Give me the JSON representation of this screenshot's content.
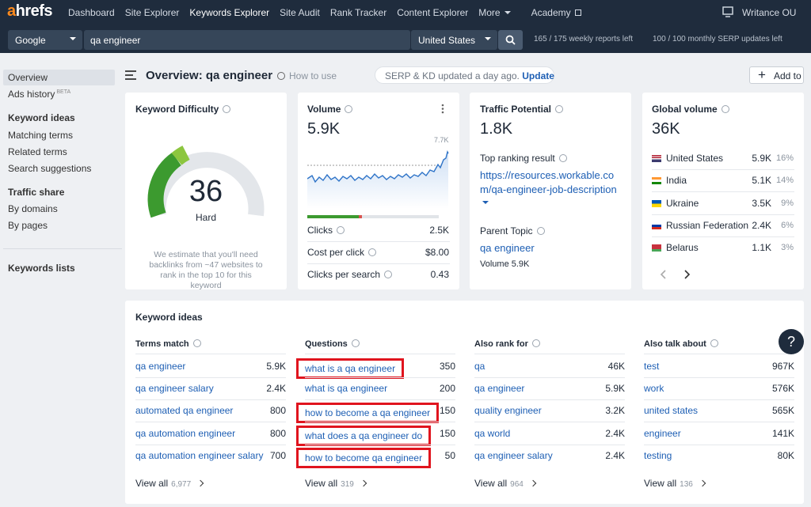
{
  "nav": {
    "logo": "ahrefs",
    "items": [
      "Dashboard",
      "Site Explorer",
      "Keywords Explorer",
      "Site Audit",
      "Rank Tracker",
      "Content Explorer",
      "More",
      "Academy"
    ],
    "active": 2,
    "account": "Writance OU"
  },
  "search": {
    "engine": "Google",
    "query": "qa engineer",
    "country": "United States",
    "reports": "165 / 175 weekly reports left",
    "serp": "100 / 100 monthly SERP updates left"
  },
  "sidebar": {
    "items": [
      {
        "label": "Overview",
        "active": true
      },
      {
        "label": "Ads history",
        "badge": "BETA"
      },
      {
        "label": "Keyword ideas",
        "heading": true
      },
      {
        "label": "Matching terms"
      },
      {
        "label": "Related terms"
      },
      {
        "label": "Search suggestions"
      },
      {
        "label": "Traffic share",
        "heading": true
      },
      {
        "label": "By domains"
      },
      {
        "label": "By pages"
      },
      {
        "label": "Keywords lists",
        "heading": true
      }
    ]
  },
  "header": {
    "title": "Overview: qa engineer",
    "how": "How to use",
    "notice": "SERP & KD updated a day ago.",
    "update": "Update",
    "add": "Add to"
  },
  "kd": {
    "title": "Keyword Difficulty",
    "value": 36,
    "label": "Hard",
    "note": "We estimate that you'll need backlinks from ~47 websites to rank in the top 10 for this keyword"
  },
  "volume": {
    "title": "Volume",
    "value": "5.9K",
    "peak": "7.7K",
    "metrics": [
      {
        "label": "Clicks",
        "value": "2.5K"
      },
      {
        "label": "Cost per click",
        "value": "$8.00"
      },
      {
        "label": "Clicks per search",
        "value": "0.43"
      }
    ]
  },
  "traffic": {
    "title": "Traffic Potential",
    "value": "1.8K",
    "top_label": "Top ranking result",
    "url": "https://resources.workable.com/qa-engineer-job-description",
    "parent_label": "Parent Topic",
    "parent": "qa engineer",
    "parent_volume": "Volume 5.9K"
  },
  "global": {
    "title": "Global volume",
    "value": "36K",
    "countries": [
      {
        "name": "United States",
        "volume": "5.9K",
        "share": "16%"
      },
      {
        "name": "India",
        "volume": "5.1K",
        "share": "14%"
      },
      {
        "name": "Ukraine",
        "volume": "3.5K",
        "share": "9%"
      },
      {
        "name": "Russian Federation",
        "volume": "2.4K",
        "share": "6%"
      },
      {
        "name": "Belarus",
        "volume": "1.1K",
        "share": "3%"
      }
    ]
  },
  "ideas": {
    "title": "Keyword ideas",
    "columns": [
      {
        "title": "Terms match",
        "rows": [
          {
            "keyword": "qa engineer",
            "volume": "5.9K"
          },
          {
            "keyword": "qa engineer salary",
            "volume": "2.4K"
          },
          {
            "keyword": "automated qa engineer",
            "volume": "800"
          },
          {
            "keyword": "qa automation engineer",
            "volume": "800"
          },
          {
            "keyword": "qa automation engineer salary",
            "volume": "700"
          }
        ],
        "view_all": "View all",
        "count": "6,977"
      },
      {
        "title": "Questions",
        "rows": [
          {
            "keyword": "what is a qa engineer",
            "volume": "350",
            "highlighted": true
          },
          {
            "keyword": "what is qa engineer",
            "volume": "200"
          },
          {
            "keyword": "how to become a qa engineer",
            "volume": "150",
            "highlighted": true
          },
          {
            "keyword": "what does a qa engineer do",
            "volume": "150",
            "highlighted": true
          },
          {
            "keyword": "how to become qa engineer",
            "volume": "50",
            "highlighted": true
          }
        ],
        "view_all": "View all",
        "count": "319"
      },
      {
        "title": "Also rank for",
        "rows": [
          {
            "keyword": "qa",
            "volume": "46K"
          },
          {
            "keyword": "qa engineer",
            "volume": "5.9K"
          },
          {
            "keyword": "quality engineer",
            "volume": "3.2K"
          },
          {
            "keyword": "qa world",
            "volume": "2.4K"
          },
          {
            "keyword": "qa engineer salary",
            "volume": "2.4K"
          }
        ],
        "view_all": "View all",
        "count": "964"
      },
      {
        "title": "Also talk about",
        "rows": [
          {
            "keyword": "test",
            "volume": "967K"
          },
          {
            "keyword": "work",
            "volume": "576K"
          },
          {
            "keyword": "united states",
            "volume": "565K"
          },
          {
            "keyword": "engineer",
            "volume": "141K"
          },
          {
            "keyword": "testing",
            "volume": "80K"
          }
        ],
        "view_all": "View all",
        "count": "136"
      }
    ]
  }
}
